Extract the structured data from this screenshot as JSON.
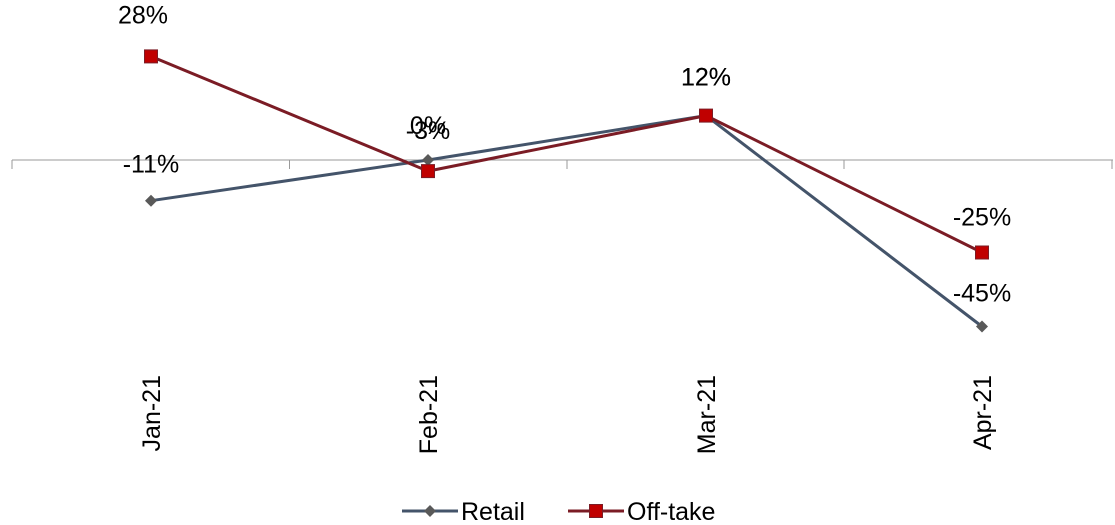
{
  "chart_data": {
    "type": "line",
    "categories": [
      "Jan-21",
      "Feb-21",
      "Mar-21",
      "Apr-21"
    ],
    "series": [
      {
        "name": "Retail",
        "values": [
          -11,
          0,
          12,
          -45
        ],
        "labels": [
          "-11%",
          "0%",
          "12%",
          "-45%"
        ],
        "color": "#44546A",
        "marker": "diamond",
        "marker_color": "#595959"
      },
      {
        "name": "Off-take",
        "values": [
          28,
          -3,
          12,
          -25
        ],
        "labels": [
          "28%",
          "-3%",
          "12%",
          "-25%"
        ],
        "color": "#7B1C25",
        "marker": "square",
        "marker_color": "#C00000"
      }
    ],
    "ylim": [
      -50,
      30
    ],
    "grid": false,
    "legend": "bottom"
  }
}
